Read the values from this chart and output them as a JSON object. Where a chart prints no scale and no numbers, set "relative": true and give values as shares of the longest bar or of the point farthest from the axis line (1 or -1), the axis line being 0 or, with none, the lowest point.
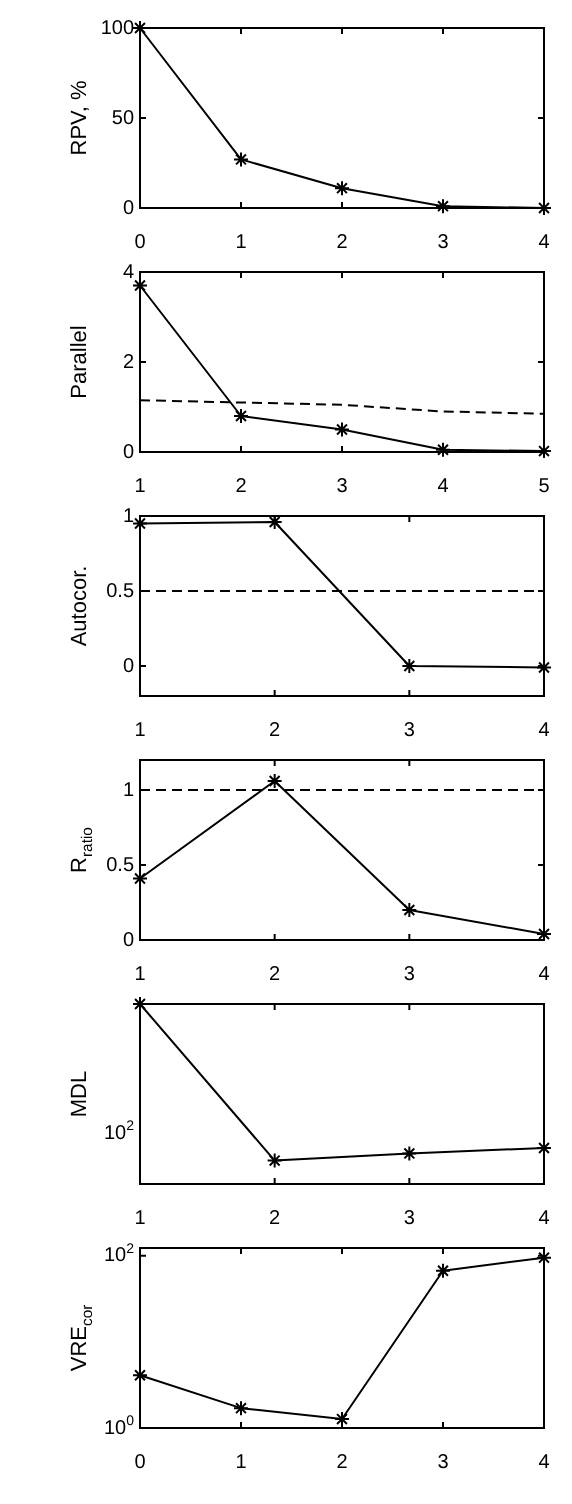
{
  "chart_data": [
    {
      "type": "line",
      "ylabel": "RPV, %",
      "x": [
        0,
        1,
        2,
        3,
        4
      ],
      "xlim": [
        0,
        4
      ],
      "xticks": [
        0,
        1,
        2,
        3,
        4
      ],
      "ylim": [
        0,
        100
      ],
      "yticks": [
        0,
        50,
        100
      ],
      "marker": "cross",
      "series": [
        {
          "color": "#000000",
          "values": [
            100,
            27,
            11,
            1,
            0
          ]
        }
      ]
    },
    {
      "type": "line",
      "ylabel": "Parallel",
      "x": [
        1,
        2,
        3,
        4,
        5
      ],
      "xlim": [
        1,
        5
      ],
      "xticks": [
        1,
        2,
        3,
        4,
        5
      ],
      "ylim": [
        0,
        4
      ],
      "yticks": [
        0,
        2,
        4
      ],
      "marker": "cross",
      "series": [
        {
          "color": "#000000",
          "values": [
            3.7,
            0.8,
            0.5,
            0.05,
            0.02
          ]
        },
        {
          "color": "#000000",
          "values": [
            1.15,
            1.1,
            1.05,
            0.9,
            0.85
          ],
          "marker": "none",
          "line_style": "dashed"
        }
      ]
    },
    {
      "type": "line",
      "ylabel": "Autocor.",
      "x": [
        1,
        2,
        3,
        4
      ],
      "xlim": [
        1,
        4
      ],
      "xticks": [
        1,
        2,
        3,
        4
      ],
      "ylim": [
        -0.2,
        1
      ],
      "yticks": [
        0,
        0.5,
        1
      ],
      "marker": "cross",
      "series": [
        {
          "color": "#000000",
          "values": [
            0.95,
            0.96,
            0,
            -0.01
          ]
        }
      ],
      "ref_lines": [
        {
          "axis": "y",
          "value": 0.5,
          "line_style": "dashed",
          "color": "#000000"
        }
      ]
    },
    {
      "type": "line",
      "ylabel": "R$_{ratio}$",
      "x": [
        1,
        2,
        3,
        4
      ],
      "xlim": [
        1,
        4
      ],
      "xticks": [
        1,
        2,
        3,
        4
      ],
      "ylim": [
        0,
        1.2
      ],
      "yticks": [
        0,
        0.5,
        1
      ],
      "marker": "cross",
      "series": [
        {
          "color": "#000000",
          "values": [
            0.41,
            1.06,
            0.2,
            0.04
          ]
        }
      ],
      "ref_lines": [
        {
          "axis": "y",
          "value": 1,
          "line_style": "dashed",
          "color": "#000000"
        }
      ]
    },
    {
      "type": "line",
      "ylabel": "MDL",
      "relative": true,
      "x": [
        1,
        2,
        3,
        4
      ],
      "xlim": [
        1,
        4
      ],
      "xticks": [
        1,
        2,
        3,
        4
      ],
      "marker": "cross",
      "annotations": [
        "10$^{2}$"
      ],
      "series": [
        {
          "color": "#000000",
          "values": [
            1,
            0.13,
            0.17,
            0.2
          ]
        }
      ]
    },
    {
      "type": "line",
      "ylabel": "VRE$_{cor}$",
      "log": "y",
      "x": [
        0,
        1,
        2,
        3,
        4
      ],
      "xlim": [
        0,
        4
      ],
      "xticks": [
        0,
        1,
        2,
        3,
        4
      ],
      "ylim": [
        1,
        123
      ],
      "yticks": [
        {
          "value": 1,
          "label": "10$^{0}$"
        },
        {
          "value": 100,
          "label": "10$^{2}$"
        }
      ],
      "marker": "cross",
      "series": [
        {
          "color": "#000000",
          "values": [
            4.1,
            1.7,
            1.27,
            67,
            95
          ]
        }
      ]
    }
  ]
}
